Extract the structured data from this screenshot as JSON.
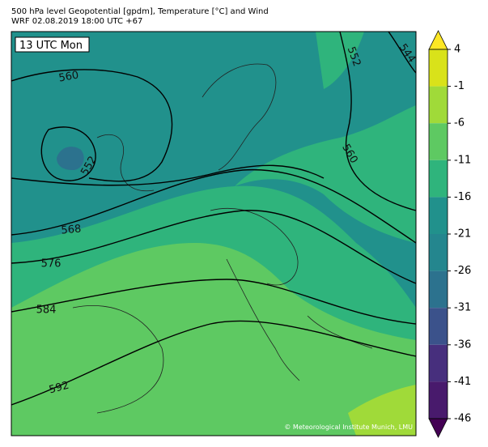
{
  "header": {
    "title_line1": "500 hPa level Geopotential [gpdm], Temperature [°C] and Wind",
    "title_line2": "WRF 02.08.2019 18:00 UTC +67"
  },
  "map": {
    "time_label": "13 UTC Mon",
    "copyright": "© Meteorological Institute Munich, LMU",
    "contour_labels": [
      560,
      552,
      544,
      552,
      560,
      568,
      576,
      584,
      592
    ]
  },
  "colorbar": {
    "ticks": [
      4,
      -1,
      -6,
      -11,
      -16,
      -21,
      -26,
      -31,
      -36,
      -41,
      -46
    ],
    "colors": [
      "#fde725",
      "#d9e21a",
      "#a0da39",
      "#5ec962",
      "#2fb47c",
      "#21918c",
      "#24868e",
      "#2c728e",
      "#3b528b",
      "#472f7d",
      "#481a6c",
      "#440154"
    ]
  }
}
